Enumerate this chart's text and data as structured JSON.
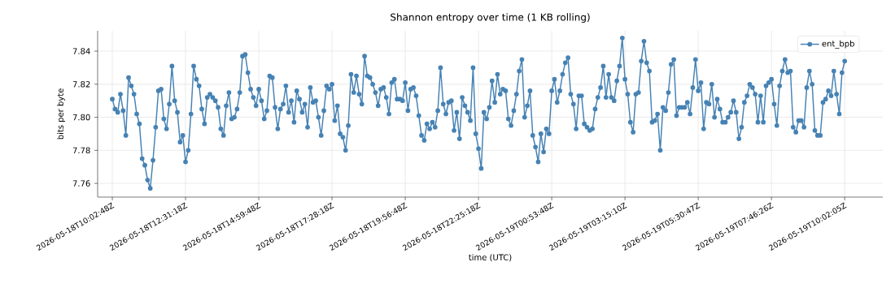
{
  "chart_data": {
    "type": "line",
    "title": "Shannon entropy over time (1 KB rolling)",
    "xlabel": "time (UTC)",
    "ylabel": "bits per byte",
    "categories": [
      "2026-05-18T10:02:48Z",
      null,
      null,
      null,
      null,
      null,
      null,
      null,
      null,
      null,
      null,
      null,
      null,
      null,
      null,
      null,
      null,
      null,
      null,
      null,
      null,
      null,
      null,
      null,
      null,
      null,
      null,
      "2026-05-18T12:31:18Z",
      null,
      null,
      null,
      null,
      null,
      null,
      null,
      null,
      null,
      null,
      null,
      null,
      null,
      null,
      null,
      null,
      null,
      null,
      null,
      null,
      null,
      null,
      null,
      null,
      null,
      null,
      "2026-05-18T14:59:48Z",
      null,
      null,
      null,
      null,
      null,
      null,
      null,
      null,
      null,
      null,
      null,
      null,
      null,
      null,
      null,
      null,
      null,
      null,
      null,
      null,
      null,
      null,
      null,
      null,
      null,
      null,
      "2026-05-18T17:28:18Z",
      null,
      null,
      null,
      null,
      null,
      null,
      null,
      null,
      null,
      null,
      null,
      null,
      null,
      null,
      null,
      null,
      null,
      null,
      null,
      null,
      null,
      null,
      null,
      null,
      null,
      null,
      "2026-05-18T19:56:48Z",
      null,
      null,
      null,
      null,
      null,
      null,
      null,
      null,
      null,
      null,
      null,
      null,
      null,
      null,
      null,
      null,
      null,
      null,
      null,
      null,
      null,
      null,
      null,
      null,
      null,
      null,
      "2026-05-18T22:25:18Z",
      null,
      null,
      null,
      null,
      null,
      null,
      null,
      null,
      null,
      null,
      null,
      null,
      null,
      null,
      null,
      null,
      null,
      null,
      null,
      null,
      null,
      null,
      null,
      null,
      null,
      null,
      "2026-05-19T00:53:48Z",
      null,
      null,
      null,
      null,
      null,
      null,
      null,
      null,
      null,
      null,
      null,
      null,
      null,
      null,
      null,
      null,
      null,
      null,
      null,
      null,
      null,
      null,
      null,
      null,
      null,
      null,
      "2026-05-19T03:15:10Z",
      null,
      null,
      null,
      null,
      null,
      null,
      null,
      null,
      null,
      null,
      null,
      null,
      null,
      null,
      null,
      null,
      null,
      null,
      null,
      null,
      null,
      null,
      null,
      null,
      null,
      null,
      "2026-05-19T05:30:47Z",
      null,
      null,
      null,
      null,
      null,
      null,
      null,
      null,
      null,
      null,
      null,
      null,
      null,
      null,
      null,
      null,
      null,
      null,
      null,
      null,
      null,
      null,
      null,
      null,
      null,
      null,
      "2026-05-19T07:46:26Z",
      null,
      null,
      null,
      null,
      null,
      null,
      null,
      null,
      null,
      null,
      null,
      null,
      null,
      null,
      null,
      null,
      null,
      null,
      null,
      null,
      null,
      null,
      null,
      null,
      null,
      null,
      "2026-05-19T10:02:05Z"
    ],
    "series": [
      {
        "name": "ent_bpb",
        "color": "#4682b4",
        "values": [
          7.811,
          7.805,
          7.803,
          7.814,
          7.804,
          7.789,
          7.824,
          7.819,
          7.814,
          7.802,
          7.796,
          7.775,
          7.771,
          7.762,
          7.757,
          7.774,
          7.794,
          7.816,
          7.817,
          7.799,
          7.793,
          7.808,
          7.831,
          7.81,
          7.803,
          7.785,
          7.789,
          7.773,
          7.78,
          7.802,
          7.831,
          7.823,
          7.819,
          7.805,
          7.796,
          7.812,
          7.814,
          7.812,
          7.81,
          7.806,
          7.793,
          7.789,
          7.807,
          7.815,
          7.799,
          7.8,
          7.805,
          7.815,
          7.837,
          7.838,
          7.827,
          7.817,
          7.812,
          7.807,
          7.817,
          7.81,
          7.799,
          7.804,
          7.825,
          7.824,
          7.806,
          7.793,
          7.805,
          7.808,
          7.819,
          7.803,
          7.81,
          7.797,
          7.816,
          7.811,
          7.803,
          7.808,
          7.794,
          7.818,
          7.809,
          7.81,
          7.8,
          7.789,
          7.804,
          7.819,
          7.817,
          7.82,
          7.798,
          7.807,
          7.79,
          7.788,
          7.78,
          7.795,
          7.826,
          7.815,
          7.825,
          7.814,
          7.808,
          7.837,
          7.825,
          7.824,
          7.82,
          7.815,
          7.807,
          7.817,
          7.818,
          7.812,
          7.802,
          7.821,
          7.823,
          7.811,
          7.811,
          7.81,
          7.821,
          7.804,
          7.817,
          7.818,
          7.813,
          7.801,
          7.789,
          7.786,
          7.796,
          7.793,
          7.797,
          7.794,
          7.804,
          7.83,
          7.808,
          7.802,
          7.809,
          7.81,
          7.792,
          7.803,
          7.787,
          7.812,
          7.807,
          7.803,
          7.798,
          7.83,
          7.79,
          7.781,
          7.769,
          7.803,
          7.799,
          7.806,
          7.822,
          7.809,
          7.826,
          7.814,
          7.817,
          7.816,
          7.799,
          7.795,
          7.804,
          7.814,
          7.828,
          7.835,
          7.8,
          7.807,
          7.816,
          7.789,
          7.782,
          7.773,
          7.79,
          7.779,
          7.793,
          7.79,
          7.816,
          7.823,
          7.809,
          7.816,
          7.826,
          7.833,
          7.836,
          7.814,
          7.808,
          7.793,
          7.813,
          7.813,
          7.796,
          7.794,
          7.792,
          7.793,
          7.805,
          7.812,
          7.818,
          7.831,
          7.812,
          7.826,
          7.812,
          7.81,
          7.822,
          7.831,
          7.848,
          7.823,
          7.814,
          7.797,
          7.791,
          7.814,
          7.815,
          7.834,
          7.846,
          7.833,
          7.828,
          7.797,
          7.798,
          7.802,
          7.78,
          7.806,
          7.804,
          7.815,
          7.832,
          7.835,
          7.801,
          7.806,
          7.806,
          7.806,
          7.809,
          7.802,
          7.818,
          7.835,
          7.816,
          7.821,
          7.793,
          7.809,
          7.808,
          7.82,
          7.8,
          7.811,
          7.805,
          7.797,
          7.797,
          7.8,
          7.803,
          7.81,
          7.803,
          7.787,
          7.794,
          7.809,
          7.813,
          7.82,
          7.818,
          7.814,
          7.797,
          7.813,
          7.797,
          7.819,
          7.821,
          7.823,
          7.808,
          7.795,
          7.819,
          7.828,
          7.835,
          7.827,
          7.828,
          7.794,
          7.791,
          7.798,
          7.798,
          7.794,
          7.818,
          7.828,
          7.82,
          7.792,
          7.789,
          7.789,
          7.809,
          7.811,
          7.816,
          7.813,
          7.828,
          7.814,
          7.802,
          7.827,
          7.834
        ]
      }
    ],
    "ylim": [
      7.7517,
      7.8523
    ],
    "yticks": [
      7.76,
      7.78,
      {
        "value": 7.8,
        "label": "7.80"
      },
      7.82,
      7.84
    ],
    "grid": true,
    "legend": "top right",
    "marker": "circle",
    "line_style": "solid"
  }
}
